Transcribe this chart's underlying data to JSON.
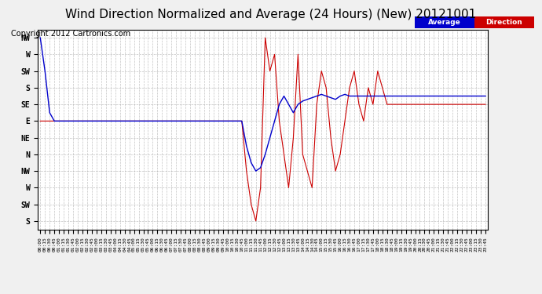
{
  "title": "Wind Direction Normalized and Average (24 Hours) (New) 20121001",
  "copyright": "Copyright 2012 Cartronics.com",
  "legend_labels": [
    "Average",
    "Direction"
  ],
  "legend_colors": [
    "#0000cc",
    "#cc0000"
  ],
  "ytick_labels": [
    "NW",
    "W",
    "SW",
    "S",
    "SE",
    "E",
    "NE",
    "N",
    "NW",
    "W",
    "SW",
    "S"
  ],
  "ytick_values": [
    12,
    11,
    10,
    9,
    8,
    7,
    6,
    5,
    4,
    3,
    2,
    1
  ],
  "ylim": [
    0.5,
    12.5
  ],
  "background_color": "#f0f0f0",
  "plot_bg": "#ffffff",
  "red_color": "#cc0000",
  "blue_color": "#0000cc",
  "title_fontsize": 11,
  "copyright_fontsize": 7,
  "tick_fontsize": 7
}
